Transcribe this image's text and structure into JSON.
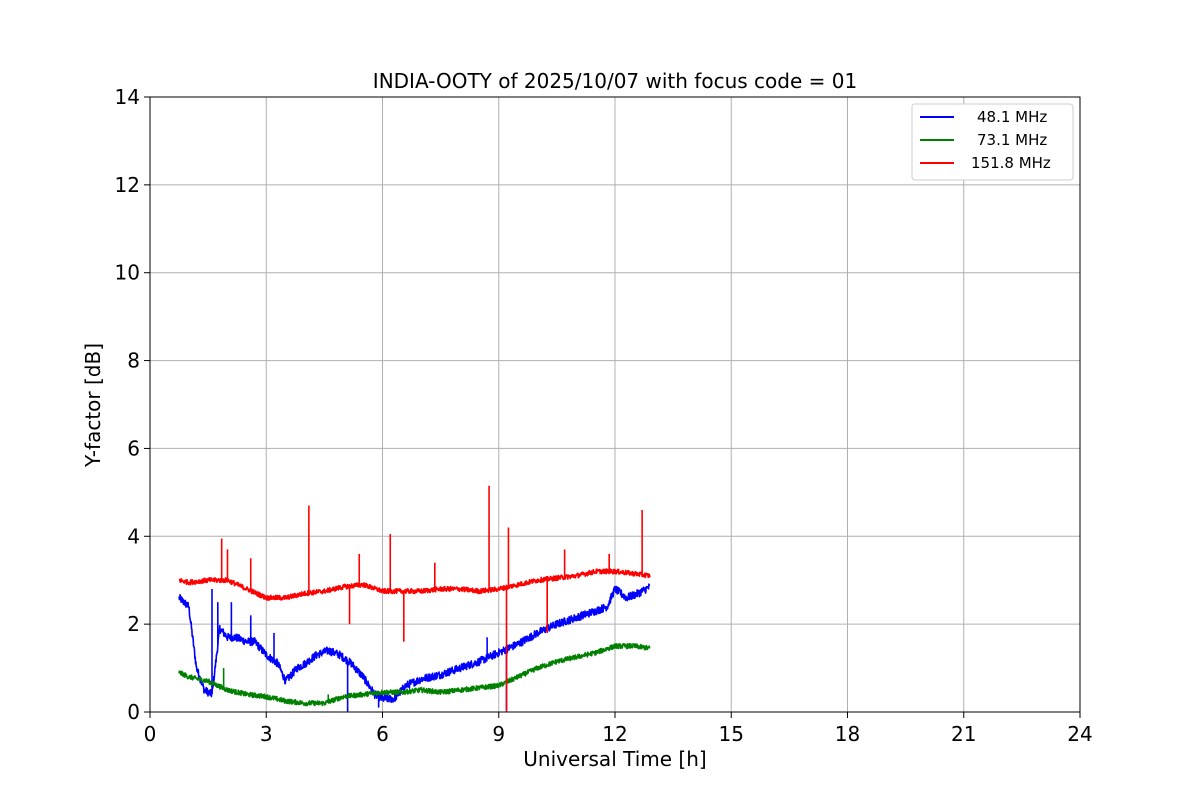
{
  "chart_data": {
    "type": "line",
    "title": "INDIA-OOTY of 2025/10/07 with focus code = 01",
    "xlabel": "Universal Time [h]",
    "ylabel": "Y-factor [dB]",
    "xlim": [
      0,
      24
    ],
    "ylim": [
      0,
      14
    ],
    "xticks": [
      0,
      3,
      6,
      9,
      12,
      15,
      18,
      21,
      24
    ],
    "yticks": [
      0,
      2,
      4,
      6,
      8,
      10,
      12,
      14
    ],
    "grid": true,
    "legend_position": "top-right",
    "series": [
      {
        "name": "48.1 MHz",
        "color": "#0000ff",
        "x": [
          0.75,
          1.0,
          1.2,
          1.4,
          1.6,
          1.8,
          2.0,
          2.2,
          2.5,
          2.7,
          3.0,
          3.3,
          3.5,
          3.8,
          4.0,
          4.3,
          4.6,
          4.9,
          5.2,
          5.5,
          5.8,
          6.0,
          6.3,
          6.6,
          7.0,
          7.5,
          8.0,
          8.5,
          9.0,
          9.5,
          10.0,
          10.5,
          11.0,
          11.5,
          11.8,
          12.0,
          12.3,
          12.6,
          12.9
        ],
        "y": [
          2.6,
          2.4,
          1.0,
          0.5,
          0.4,
          1.9,
          1.7,
          1.7,
          1.6,
          1.6,
          1.3,
          1.1,
          0.7,
          1.0,
          1.1,
          1.3,
          1.4,
          1.3,
          1.1,
          0.8,
          0.4,
          0.3,
          0.3,
          0.6,
          0.75,
          0.85,
          1.0,
          1.15,
          1.35,
          1.55,
          1.8,
          2.0,
          2.15,
          2.3,
          2.4,
          2.8,
          2.6,
          2.7,
          2.85
        ],
        "spikes": [
          [
            1.6,
            2.8
          ],
          [
            1.75,
            2.5
          ],
          [
            2.1,
            2.5
          ],
          [
            2.6,
            2.2
          ],
          [
            3.2,
            1.8
          ],
          [
            5.1,
            0.0
          ],
          [
            5.9,
            0.1
          ],
          [
            8.7,
            1.7
          ],
          [
            9.2,
            0.05
          ]
        ]
      },
      {
        "name": "73.1 MHz",
        "color": "#008000",
        "x": [
          0.75,
          1.0,
          1.5,
          2.0,
          2.5,
          3.0,
          3.5,
          4.0,
          4.5,
          5.0,
          5.5,
          6.0,
          6.5,
          7.0,
          7.5,
          8.0,
          8.5,
          9.0,
          9.5,
          10.0,
          10.5,
          11.0,
          11.5,
          12.0,
          12.5,
          12.9
        ],
        "y": [
          0.9,
          0.8,
          0.7,
          0.5,
          0.4,
          0.35,
          0.25,
          0.2,
          0.2,
          0.35,
          0.4,
          0.45,
          0.45,
          0.5,
          0.45,
          0.5,
          0.55,
          0.6,
          0.8,
          1.0,
          1.15,
          1.25,
          1.35,
          1.5,
          1.5,
          1.45
        ],
        "spikes": [
          [
            1.9,
            1.0
          ],
          [
            4.6,
            0.4
          ]
        ]
      },
      {
        "name": "151.8 MHz",
        "color": "#ff0000",
        "x": [
          0.75,
          1.0,
          1.5,
          2.0,
          2.5,
          3.0,
          3.5,
          4.0,
          4.5,
          5.0,
          5.5,
          6.0,
          6.5,
          7.0,
          7.5,
          8.0,
          8.5,
          9.0,
          9.5,
          10.0,
          10.5,
          11.0,
          11.5,
          12.0,
          12.5,
          12.9
        ],
        "y": [
          3.0,
          2.95,
          3.0,
          3.0,
          2.8,
          2.6,
          2.6,
          2.7,
          2.75,
          2.85,
          2.9,
          2.75,
          2.75,
          2.75,
          2.8,
          2.8,
          2.75,
          2.8,
          2.9,
          3.0,
          3.05,
          3.1,
          3.2,
          3.2,
          3.15,
          3.1
        ],
        "spikes": [
          [
            1.85,
            3.95
          ],
          [
            2.0,
            3.7
          ],
          [
            2.6,
            3.5
          ],
          [
            4.1,
            4.7
          ],
          [
            5.15,
            2.0
          ],
          [
            5.4,
            3.6
          ],
          [
            6.2,
            4.05
          ],
          [
            6.55,
            1.6
          ],
          [
            7.35,
            3.4
          ],
          [
            8.75,
            5.15
          ],
          [
            9.2,
            0.0
          ],
          [
            9.25,
            4.2
          ],
          [
            10.25,
            1.8
          ],
          [
            10.7,
            3.7
          ],
          [
            11.85,
            3.6
          ],
          [
            12.7,
            4.6
          ]
        ]
      }
    ]
  }
}
